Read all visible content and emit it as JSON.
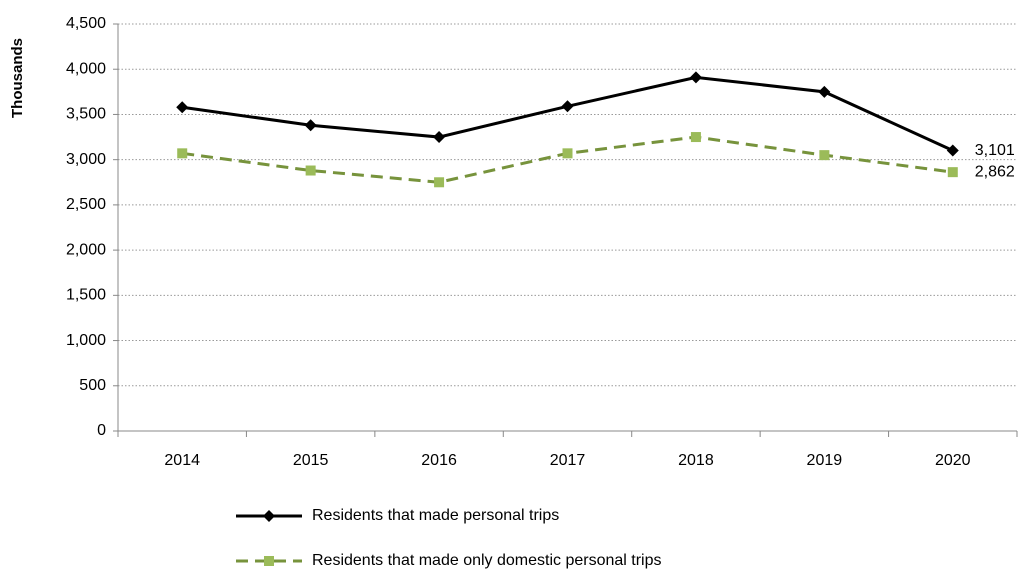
{
  "chart_data": {
    "type": "line",
    "y_label": "Thousands",
    "categories": [
      "2014",
      "2015",
      "2016",
      "2017",
      "2018",
      "2019",
      "2020"
    ],
    "series": [
      {
        "name": "Residents that made personal trips",
        "color": "#000000",
        "marker": "diamond",
        "line_style": "solid",
        "values": [
          3580,
          3380,
          3250,
          3590,
          3910,
          3750,
          3101
        ],
        "value_labels": [
          null,
          null,
          null,
          null,
          null,
          null,
          "3,101"
        ]
      },
      {
        "name": "Residents that made only domestic personal trips",
        "color": "#77933c",
        "marker_color": "#9bbb59",
        "marker": "square",
        "line_style": "dashed",
        "values": [
          3070,
          2880,
          2750,
          3070,
          3250,
          3050,
          2862
        ],
        "value_labels": [
          null,
          null,
          null,
          null,
          null,
          null,
          "2,862"
        ]
      }
    ],
    "ylim": [
      0,
      4500
    ],
    "yticks": [
      0,
      500,
      {
        "value": 1000,
        "label": "1,000"
      },
      {
        "value": 1500,
        "label": "1,500"
      },
      {
        "value": 2000,
        "label": "2,000"
      },
      {
        "value": 2500,
        "label": "2,500"
      },
      {
        "value": 3000,
        "label": "3,000"
      },
      {
        "value": 3500,
        "label": "3,500"
      },
      {
        "value": 4000,
        "label": "4,000"
      },
      {
        "value": 4500,
        "label": "4,500"
      }
    ],
    "grid": true,
    "legend": "bottom"
  }
}
